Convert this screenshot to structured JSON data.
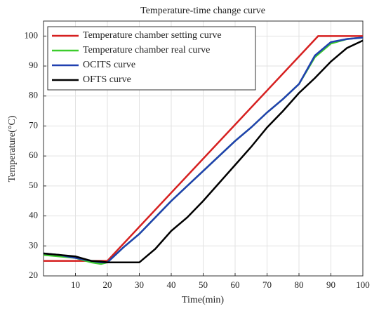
{
  "chart_data": {
    "type": "line",
    "title": "Temperature-time change curve",
    "xlabel": "Time(min)",
    "ylabel": "Temperature(°C)",
    "xlim": [
      0,
      100
    ],
    "xticks": [
      10,
      20,
      30,
      40,
      50,
      60,
      70,
      80,
      90,
      100
    ],
    "ylim": [
      20,
      105
    ],
    "yticks": [
      20,
      30,
      40,
      50,
      60,
      70,
      80,
      90,
      100
    ],
    "grid": true,
    "legend": "upper-left",
    "series": [
      {
        "name": "Temperature chamber setting curve",
        "color": "#d62020",
        "x": [
          0,
          20,
          86,
          100
        ],
        "values": [
          25,
          25,
          100,
          100
        ]
      },
      {
        "name": "Temperature chamber real curve",
        "color": "#3ccc2c",
        "x": [
          0,
          5,
          10,
          15,
          18,
          20,
          25,
          30,
          35,
          40,
          45,
          50,
          55,
          60,
          65,
          70,
          75,
          80,
          85,
          90,
          95,
          100
        ],
        "values": [
          27,
          26.5,
          26,
          24.5,
          24,
          24.5,
          29.5,
          34,
          39.5,
          45,
          50,
          55,
          60,
          65,
          69.5,
          74.5,
          79,
          84,
          93,
          97.5,
          99,
          99.5
        ]
      },
      {
        "name": "OCITS curve",
        "color": "#2040b0",
        "x": [
          0,
          5,
          10,
          15,
          18,
          20,
          25,
          30,
          35,
          40,
          45,
          50,
          55,
          60,
          65,
          70,
          75,
          80,
          85,
          90,
          95,
          100
        ],
        "values": [
          27.5,
          27,
          26,
          25,
          24.5,
          24.5,
          29.5,
          34,
          39.5,
          45,
          50,
          55,
          60,
          65,
          69.5,
          74.5,
          79,
          84,
          93.5,
          98,
          99,
          99.5
        ]
      },
      {
        "name": "OFTS curve",
        "color": "#000000",
        "x": [
          0,
          5,
          10,
          15,
          18,
          20,
          25,
          30,
          35,
          40,
          45,
          50,
          55,
          60,
          65,
          70,
          75,
          80,
          85,
          90,
          95,
          100
        ],
        "values": [
          27.5,
          27,
          26.5,
          25,
          24.8,
          24.5,
          24.5,
          24.5,
          29,
          35,
          39.5,
          45,
          51,
          57,
          63,
          69.5,
          75,
          81,
          86,
          91.5,
          96,
          98.5
        ]
      }
    ]
  }
}
